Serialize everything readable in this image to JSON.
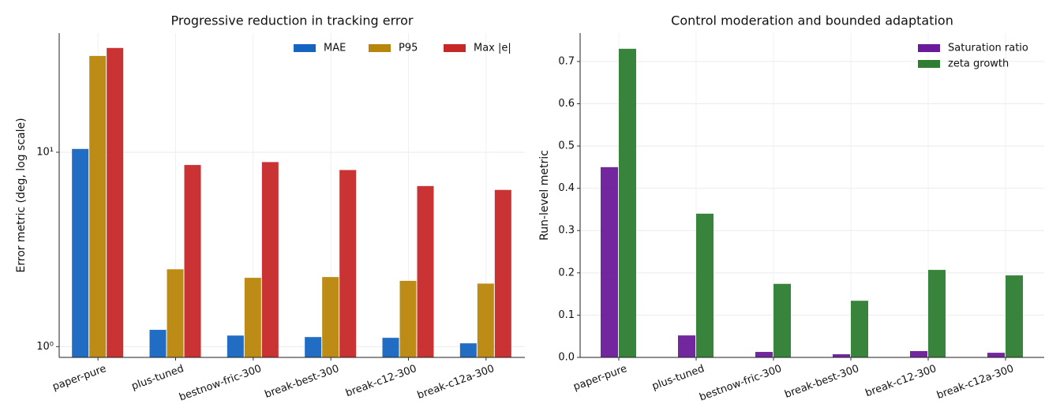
{
  "chart_data": [
    {
      "type": "bar",
      "title": "Progressive reduction in tracking error",
      "ylabel": "Error metric (deg, log scale)",
      "categories": [
        "paper-pure",
        "plus-tuned",
        "bestnow-fric-300",
        "break-best-300",
        "break-c12-300",
        "break-c12a-300"
      ],
      "series": [
        {
          "name": "MAE",
          "color": "#1565c0",
          "values": [
            10.4,
            1.22,
            1.14,
            1.12,
            1.11,
            1.04
          ]
        },
        {
          "name": "P95",
          "color": "#b8860b",
          "values": [
            31.3,
            2.5,
            2.26,
            2.28,
            2.18,
            2.11
          ]
        },
        {
          "name": "Max |e|",
          "color": "#c62828",
          "values": [
            34.4,
            8.6,
            8.9,
            8.1,
            6.7,
            6.4
          ]
        }
      ],
      "log_scale": true,
      "ylim": [
        0.88,
        41
      ],
      "yticks": [
        {
          "value": 1,
          "label": "10⁰"
        },
        {
          "value": 10,
          "label": "10¹"
        }
      ],
      "grid": true,
      "legend": "upper right"
    },
    {
      "type": "bar",
      "title": "Control moderation and bounded adaptation",
      "ylabel": "Run-level metric",
      "categories": [
        "paper-pure",
        "plus-tuned",
        "bestnow-fric-300",
        "break-best-300",
        "break-c12-300",
        "break-c12a-300"
      ],
      "series": [
        {
          "name": "Saturation ratio",
          "color": "#6a1b9a",
          "values": [
            0.45,
            0.052,
            0.013,
            0.0075,
            0.015,
            0.011
          ]
        },
        {
          "name": "zeta growth",
          "color": "#2e7d32",
          "values": [
            0.73,
            0.34,
            0.174,
            0.134,
            0.207,
            0.194
          ]
        }
      ],
      "log_scale": false,
      "ylim": [
        0,
        0.767
      ],
      "yticks": [
        {
          "value": 0,
          "label": "0.0"
        },
        0.1,
        0.2,
        0.3,
        0.4,
        0.5,
        0.6,
        0.7
      ],
      "grid": true,
      "legend": "upper right"
    }
  ]
}
